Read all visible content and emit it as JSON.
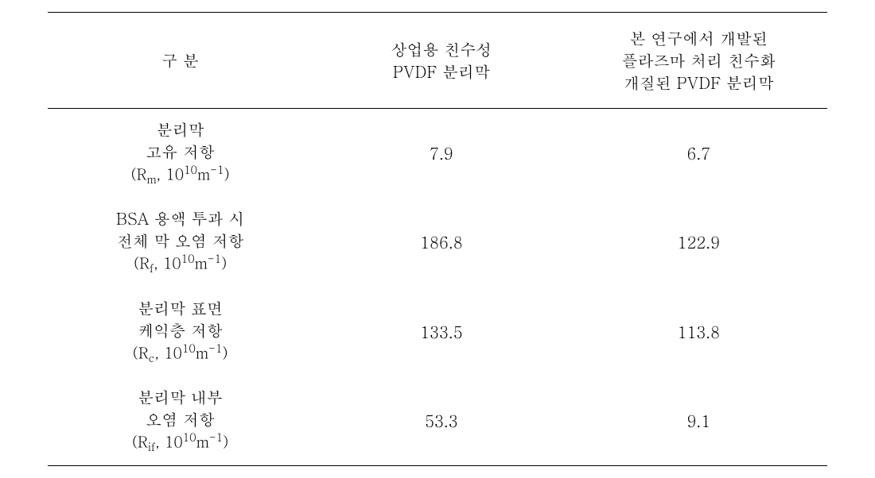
{
  "table": {
    "type": "table",
    "structure_type": "scientific-data-table",
    "background_color": "#ffffff",
    "border_color": "#000000",
    "header_border_top_width": 1.5,
    "header_border_bottom_width": 1,
    "body_border_bottom_width": 1,
    "font_family": "Batang, serif",
    "header_fontsize": 20,
    "cell_fontsize": 20,
    "text_color": "#000000",
    "columns": [
      {
        "key": "category",
        "header_line1": "구 분",
        "width_percent": 34,
        "align": "center"
      },
      {
        "key": "commercial",
        "header_line1": "상업용 친수성",
        "header_line2": "PVDF 분리막",
        "width_percent": 33,
        "align": "center"
      },
      {
        "key": "developed",
        "header_line1": "본 연구에서 개발된",
        "header_line2": "플라즈마 처리 친수화",
        "header_line3": "개질된 PVDF 분리막",
        "width_percent": 33,
        "align": "center"
      }
    ],
    "rows": [
      {
        "label_line1": "분리막",
        "label_line2": "고유 저항",
        "notation_prefix": "(R",
        "notation_sub": "m",
        "notation_mid": ", 10",
        "notation_sup": "10",
        "notation_unit": "m",
        "notation_sup2": "-1",
        "notation_suffix": ")",
        "commercial": "7.9",
        "developed": "6.7"
      },
      {
        "label_line1": "BSA 용액 투과 시",
        "label_line2": "전체 막 오염 저항",
        "notation_prefix": "(R",
        "notation_sub": "f",
        "notation_mid": ", 10",
        "notation_sup": "10",
        "notation_unit": "m",
        "notation_sup2": "-1",
        "notation_suffix": ")",
        "commercial": "186.8",
        "developed": "122.9"
      },
      {
        "label_line1": "분리막 표면",
        "label_line2": "케익층 저항",
        "notation_prefix": "(R",
        "notation_sub": "c",
        "notation_mid": ", 10",
        "notation_sup": "10",
        "notation_unit": "m",
        "notation_sup2": "-1",
        "notation_suffix": ")",
        "commercial": "133.5",
        "developed": "113.8"
      },
      {
        "label_line1": "분리막 내부",
        "label_line2": "오염 저항",
        "notation_prefix": "(R",
        "notation_sub": "if",
        "notation_mid": ", 10",
        "notation_sup": "10",
        "notation_unit": "m",
        "notation_sup2": "-1",
        "notation_suffix": ")",
        "commercial": "53.3",
        "developed": "9.1"
      }
    ]
  }
}
